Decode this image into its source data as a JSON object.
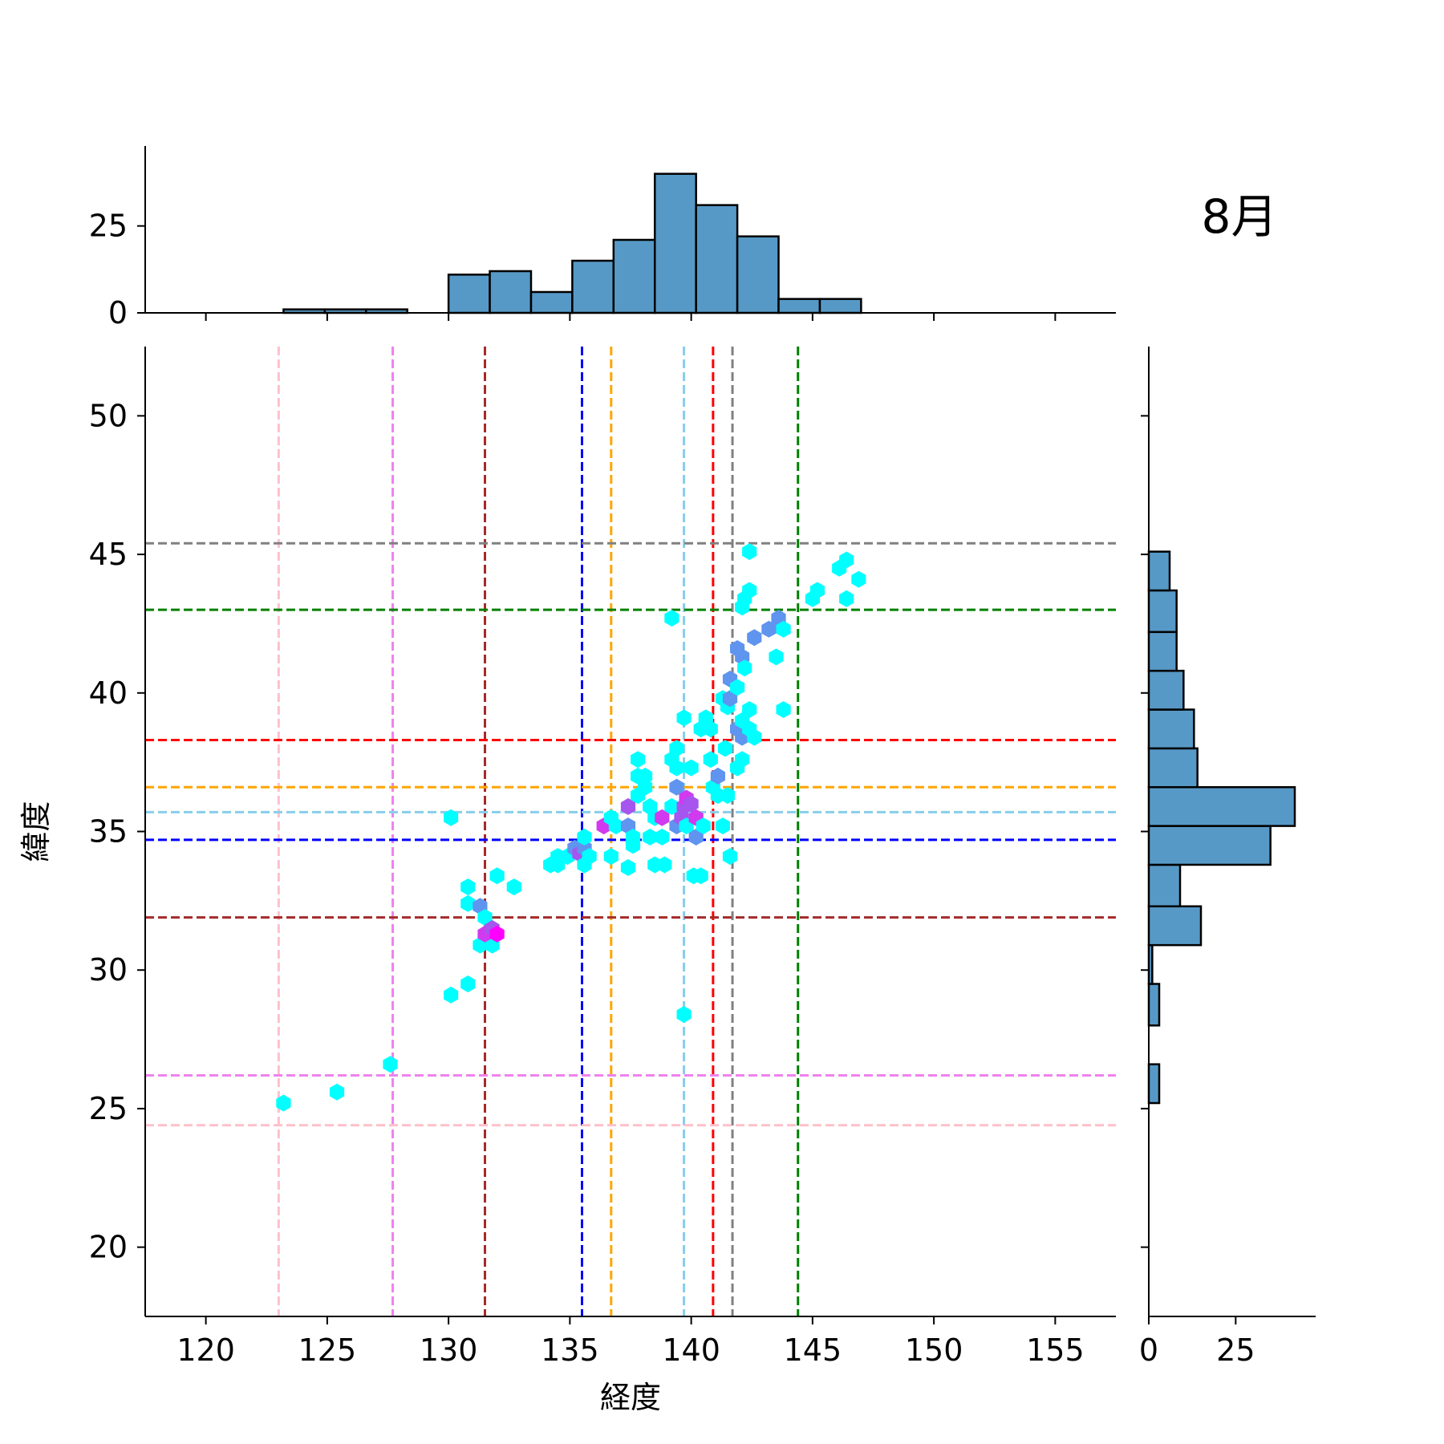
{
  "chart_data": {
    "type": "hexbin",
    "title": "8月",
    "xlabel": "経度",
    "ylabel": "緯度",
    "xlim": [
      117.5,
      157.5
    ],
    "ylim": [
      17.5,
      52.5
    ],
    "xticks": [
      120,
      125,
      130,
      135,
      140,
      145,
      150,
      155
    ],
    "yticks": [
      20,
      25,
      30,
      35,
      40,
      45,
      50
    ],
    "hist_top_ticks": [
      0,
      25
    ],
    "hist_right_ticks": [
      0,
      25
    ],
    "hist_color": "#5799c6",
    "x_histogram": {
      "bins": [
        [
          123.2,
          124.9,
          1
        ],
        [
          124.9,
          126.6,
          1
        ],
        [
          126.6,
          128.3,
          1
        ],
        [
          128.3,
          130.0,
          0
        ],
        [
          130.0,
          131.7,
          11
        ],
        [
          131.7,
          133.4,
          12
        ],
        [
          133.4,
          135.1,
          6
        ],
        [
          135.1,
          136.8,
          15
        ],
        [
          136.8,
          138.5,
          21
        ],
        [
          138.5,
          140.2,
          40
        ],
        [
          140.2,
          141.9,
          31
        ],
        [
          141.9,
          143.6,
          22
        ],
        [
          143.6,
          145.3,
          4
        ],
        [
          145.3,
          147.0,
          4
        ]
      ]
    },
    "y_histogram": {
      "bins": [
        [
          25.2,
          26.6,
          3
        ],
        [
          26.6,
          28.0,
          0
        ],
        [
          28.0,
          29.5,
          3
        ],
        [
          29.5,
          30.9,
          1
        ],
        [
          30.9,
          32.3,
          15
        ],
        [
          32.3,
          33.8,
          9
        ],
        [
          33.8,
          35.2,
          35
        ],
        [
          35.2,
          36.6,
          42
        ],
        [
          36.6,
          38.0,
          14
        ],
        [
          38.0,
          39.4,
          13
        ],
        [
          39.4,
          40.8,
          10
        ],
        [
          40.8,
          42.2,
          8
        ],
        [
          42.2,
          43.7,
          8
        ],
        [
          43.7,
          45.1,
          6
        ]
      ]
    },
    "vlines": [
      {
        "x": 123.0,
        "color": "#ffc0cb"
      },
      {
        "x": 127.7,
        "color": "#ee82ee"
      },
      {
        "x": 131.5,
        "color": "#a52a2a"
      },
      {
        "x": 135.5,
        "color": "#0000ff"
      },
      {
        "x": 136.7,
        "color": "#ffa500"
      },
      {
        "x": 139.7,
        "color": "#87ceeb"
      },
      {
        "x": 140.9,
        "color": "#ff0000"
      },
      {
        "x": 141.7,
        "color": "#808080"
      },
      {
        "x": 144.4,
        "color": "#008000"
      }
    ],
    "hlines": [
      {
        "y": 45.4,
        "color": "#808080"
      },
      {
        "y": 43.0,
        "color": "#008000"
      },
      {
        "y": 38.3,
        "color": "#ff0000"
      },
      {
        "y": 36.6,
        "color": "#ffa500"
      },
      {
        "y": 35.7,
        "color": "#87ceeb"
      },
      {
        "y": 34.7,
        "color": "#0000ff"
      },
      {
        "y": 31.9,
        "color": "#a52a2a"
      },
      {
        "y": 26.2,
        "color": "#ee82ee"
      },
      {
        "y": 24.4,
        "color": "#ffc0cb"
      }
    ],
    "hexbins": [
      [
        123.2,
        25.2,
        1
      ],
      [
        125.4,
        25.6,
        1
      ],
      [
        127.6,
        26.6,
        1
      ],
      [
        130.1,
        29.1,
        1
      ],
      [
        130.8,
        29.5,
        1
      ],
      [
        130.1,
        35.5,
        1
      ],
      [
        130.8,
        33.0,
        1
      ],
      [
        130.8,
        32.4,
        1
      ],
      [
        131.3,
        32.3,
        2
      ],
      [
        131.5,
        31.9,
        1
      ],
      [
        131.3,
        30.9,
        1
      ],
      [
        131.8,
        30.9,
        1
      ],
      [
        131.5,
        31.3,
        4
      ],
      [
        131.8,
        31.5,
        3
      ],
      [
        132.0,
        31.3,
        5
      ],
      [
        132.0,
        33.4,
        1
      ],
      [
        132.7,
        33.0,
        1
      ],
      [
        134.2,
        33.8,
        1
      ],
      [
        134.5,
        33.8,
        1
      ],
      [
        134.5,
        34.1,
        1
      ],
      [
        134.9,
        34.1,
        1
      ],
      [
        135.2,
        34.4,
        2
      ],
      [
        135.4,
        34.2,
        3
      ],
      [
        135.6,
        34.4,
        2
      ],
      [
        135.6,
        34.8,
        1
      ],
      [
        135.8,
        34.1,
        1
      ],
      [
        135.6,
        33.8,
        1
      ],
      [
        136.4,
        35.2,
        4
      ],
      [
        136.7,
        35.5,
        1
      ],
      [
        136.9,
        35.2,
        1
      ],
      [
        136.7,
        34.1,
        1
      ],
      [
        137.4,
        35.9,
        3
      ],
      [
        137.4,
        35.2,
        2
      ],
      [
        137.6,
        34.8,
        1
      ],
      [
        137.6,
        34.5,
        1
      ],
      [
        137.4,
        33.7,
        1
      ],
      [
        137.8,
        37.6,
        1
      ],
      [
        137.8,
        37.0,
        1
      ],
      [
        138.1,
        37.0,
        1
      ],
      [
        137.8,
        36.3,
        1
      ],
      [
        138.1,
        36.6,
        1
      ],
      [
        138.3,
        35.9,
        1
      ],
      [
        138.5,
        35.5,
        1
      ],
      [
        138.3,
        34.8,
        1
      ],
      [
        138.8,
        35.5,
        4
      ],
      [
        138.8,
        34.8,
        1
      ],
      [
        138.5,
        33.8,
        1
      ],
      [
        138.9,
        33.8,
        1
      ],
      [
        139.2,
        42.7,
        1
      ],
      [
        139.2,
        37.6,
        1
      ],
      [
        139.4,
        38.0,
        1
      ],
      [
        139.4,
        37.3,
        1
      ],
      [
        139.2,
        35.9,
        1
      ],
      [
        139.4,
        36.6,
        2
      ],
      [
        139.4,
        35.2,
        2
      ],
      [
        139.6,
        35.5,
        3
      ],
      [
        139.7,
        35.9,
        3
      ],
      [
        139.8,
        36.2,
        4
      ],
      [
        139.8,
        35.2,
        1
      ],
      [
        139.7,
        39.1,
        1
      ],
      [
        140.0,
        37.3,
        1
      ],
      [
        140.0,
        36.0,
        3
      ],
      [
        140.2,
        35.5,
        4
      ],
      [
        140.2,
        34.8,
        2
      ],
      [
        140.1,
        33.4,
        1
      ],
      [
        140.4,
        33.4,
        1
      ],
      [
        140.5,
        35.2,
        1
      ],
      [
        139.7,
        28.4,
        1
      ],
      [
        140.4,
        38.7,
        1
      ],
      [
        140.6,
        39.1,
        1
      ],
      [
        140.8,
        38.7,
        1
      ],
      [
        140.8,
        37.6,
        1
      ],
      [
        140.9,
        36.6,
        1
      ],
      [
        141.1,
        37.0,
        2
      ],
      [
        141.1,
        36.3,
        1
      ],
      [
        141.3,
        35.2,
        1
      ],
      [
        141.6,
        34.1,
        1
      ],
      [
        141.5,
        36.3,
        1
      ],
      [
        141.4,
        38.0,
        1
      ],
      [
        141.3,
        39.8,
        1
      ],
      [
        141.5,
        39.5,
        1
      ],
      [
        141.6,
        40.5,
        2
      ],
      [
        141.6,
        39.8,
        2
      ],
      [
        141.9,
        40.2,
        1
      ],
      [
        141.9,
        41.6,
        2
      ],
      [
        142.1,
        41.3,
        2
      ],
      [
        142.2,
        40.9,
        1
      ],
      [
        142.1,
        43.1,
        1
      ],
      [
        142.2,
        43.4,
        1
      ],
      [
        142.4,
        43.7,
        1
      ],
      [
        142.4,
        45.1,
        1
      ],
      [
        141.9,
        38.7,
        2
      ],
      [
        142.1,
        38.4,
        2
      ],
      [
        142.1,
        37.6,
        1
      ],
      [
        141.9,
        37.3,
        1
      ],
      [
        142.4,
        38.7,
        1
      ],
      [
        142.6,
        38.4,
        1
      ],
      [
        142.4,
        39.4,
        1
      ],
      [
        142.1,
        39.0,
        1
      ],
      [
        142.6,
        42.0,
        2
      ],
      [
        143.2,
        42.3,
        2
      ],
      [
        143.6,
        42.7,
        2
      ],
      [
        143.8,
        42.3,
        1
      ],
      [
        143.5,
        41.3,
        1
      ],
      [
        143.8,
        39.4,
        1
      ],
      [
        145.0,
        43.4,
        1
      ],
      [
        145.2,
        43.7,
        1
      ],
      [
        146.1,
        44.5,
        1
      ],
      [
        146.4,
        44.8,
        1
      ],
      [
        146.4,
        43.4,
        1
      ],
      [
        146.9,
        44.1,
        1
      ]
    ]
  }
}
